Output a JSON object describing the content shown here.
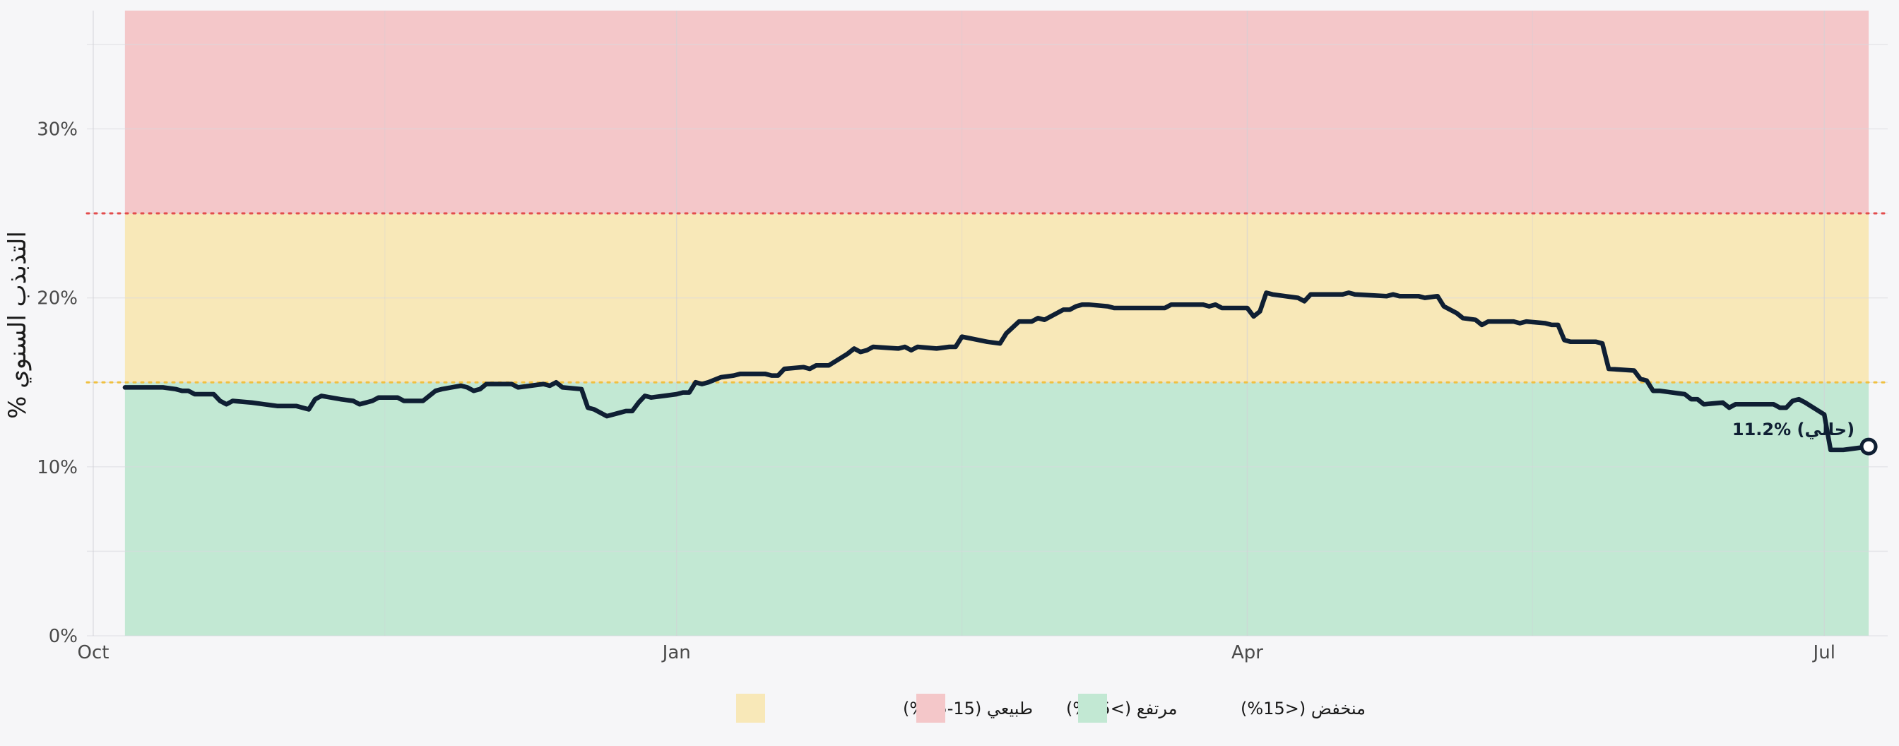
{
  "chart_data": {
    "type": "line",
    "title": "",
    "xlabel": "",
    "ylabel": "التذبذب السنوي %",
    "ylim": [
      0,
      37
    ],
    "yticks": [
      0,
      10,
      20,
      30
    ],
    "ytick_format": "{v}%",
    "x_axis": {
      "start_month": "2025-09-01",
      "range_days": [
        30,
        314
      ],
      "ticks": [
        {
          "day": 31,
          "label": "Oct"
        },
        {
          "day": 123,
          "label": "Jan"
        },
        {
          "day": 213,
          "label": "Apr"
        },
        {
          "day": 304,
          "label": "Jul"
        }
      ],
      "minor_gridlines_days": [
        77,
        168,
        258
      ]
    },
    "zones": [
      {
        "name": "منخفض (<15%)",
        "from": 0,
        "to": 15,
        "color": "#c2e8d3"
      },
      {
        "name": "طبيعي (15-25%)",
        "from": 15,
        "to": 25,
        "color": "#f8e8b8"
      },
      {
        "name": "مرتفع (>25%)",
        "from": 25,
        "to": 37,
        "color": "#f4c7c9"
      }
    ],
    "zone_x_range_days": [
      36,
      311
    ],
    "threshold_lines": [
      {
        "y": 15,
        "color": "#f0c040"
      },
      {
        "y": 25,
        "color": "#e34c4c"
      }
    ],
    "legend": {
      "placement": "bottom-center",
      "entries": [
        {
          "label": "طبيعي (15-25%)",
          "color": "#f8e8b8"
        },
        {
          "label": "مرتفع (>25%)",
          "color": "#f4c7c9"
        },
        {
          "label": "منخفض (<15%)",
          "color": "#c2e8d3"
        }
      ]
    },
    "series": [
      {
        "color": "#0f1f33",
        "points": [
          [
            36,
            14.7
          ],
          [
            42,
            14.7
          ],
          [
            44,
            14.6
          ],
          [
            45,
            14.5
          ],
          [
            46,
            14.5
          ],
          [
            47,
            14.3
          ],
          [
            49,
            14.3
          ],
          [
            50,
            14.3
          ],
          [
            51,
            13.9
          ],
          [
            52,
            13.7
          ],
          [
            53,
            13.9
          ],
          [
            56,
            13.8
          ],
          [
            58,
            13.7
          ],
          [
            60,
            13.6
          ],
          [
            63,
            13.6
          ],
          [
            65,
            13.4
          ],
          [
            66,
            14.0
          ],
          [
            67,
            14.2
          ],
          [
            70,
            14.0
          ],
          [
            72,
            13.9
          ],
          [
            73,
            13.7
          ],
          [
            75,
            13.9
          ],
          [
            76,
            14.1
          ],
          [
            78,
            14.1
          ],
          [
            79,
            14.1
          ],
          [
            80,
            13.9
          ],
          [
            83,
            13.9
          ],
          [
            85,
            14.5
          ],
          [
            86,
            14.6
          ],
          [
            89,
            14.8
          ],
          [
            90,
            14.7
          ],
          [
            91,
            14.5
          ],
          [
            92,
            14.6
          ],
          [
            93,
            14.9
          ],
          [
            97,
            14.9
          ],
          [
            98,
            14.7
          ],
          [
            100,
            14.8
          ],
          [
            102,
            14.9
          ],
          [
            103,
            14.8
          ],
          [
            104,
            15.0
          ],
          [
            105,
            14.7
          ],
          [
            108,
            14.6
          ],
          [
            109,
            13.5
          ],
          [
            110,
            13.4
          ],
          [
            112,
            13.0
          ],
          [
            114,
            13.2
          ],
          [
            115,
            13.3
          ],
          [
            116,
            13.3
          ],
          [
            117,
            13.8
          ],
          [
            118,
            14.2
          ],
          [
            119,
            14.1
          ],
          [
            121,
            14.2
          ],
          [
            123,
            14.3
          ],
          [
            124,
            14.4
          ],
          [
            125,
            14.4
          ],
          [
            126,
            15.0
          ],
          [
            127,
            14.9
          ],
          [
            128,
            15.0
          ],
          [
            130,
            15.3
          ],
          [
            132,
            15.4
          ],
          [
            133,
            15.5
          ],
          [
            137,
            15.5
          ],
          [
            138,
            15.4
          ],
          [
            139,
            15.4
          ],
          [
            140,
            15.8
          ],
          [
            143,
            15.9
          ],
          [
            144,
            15.8
          ],
          [
            145,
            16.0
          ],
          [
            147,
            16.0
          ],
          [
            150,
            16.7
          ],
          [
            151,
            17.0
          ],
          [
            152,
            16.8
          ],
          [
            153,
            16.9
          ],
          [
            154,
            17.1
          ],
          [
            158,
            17.0
          ],
          [
            159,
            17.1
          ],
          [
            160,
            16.9
          ],
          [
            161,
            17.1
          ],
          [
            164,
            17.0
          ],
          [
            166,
            17.1
          ],
          [
            167,
            17.1
          ],
          [
            168,
            17.7
          ],
          [
            172,
            17.4
          ],
          [
            174,
            17.3
          ],
          [
            175,
            17.9
          ],
          [
            177,
            18.6
          ],
          [
            179,
            18.6
          ],
          [
            180,
            18.8
          ],
          [
            181,
            18.7
          ],
          [
            184,
            19.3
          ],
          [
            185,
            19.3
          ],
          [
            186,
            19.5
          ],
          [
            187,
            19.6
          ],
          [
            188,
            19.6
          ],
          [
            191,
            19.5
          ],
          [
            192,
            19.4
          ],
          [
            200,
            19.4
          ],
          [
            201,
            19.6
          ],
          [
            206,
            19.6
          ],
          [
            207,
            19.5
          ],
          [
            208,
            19.6
          ],
          [
            209,
            19.4
          ],
          [
            213,
            19.4
          ],
          [
            214,
            18.9
          ],
          [
            215,
            19.2
          ],
          [
            216,
            20.3
          ],
          [
            217,
            20.2
          ],
          [
            221,
            20.0
          ],
          [
            222,
            19.8
          ],
          [
            223,
            20.2
          ],
          [
            228,
            20.2
          ],
          [
            229,
            20.3
          ],
          [
            230,
            20.2
          ],
          [
            235,
            20.1
          ],
          [
            236,
            20.2
          ],
          [
            237,
            20.1
          ],
          [
            240,
            20.1
          ],
          [
            241,
            20.0
          ],
          [
            243,
            20.1
          ],
          [
            244,
            19.5
          ],
          [
            245,
            19.3
          ],
          [
            246,
            19.1
          ],
          [
            247,
            18.8
          ],
          [
            249,
            18.7
          ],
          [
            250,
            18.4
          ],
          [
            251,
            18.6
          ],
          [
            255,
            18.6
          ],
          [
            256,
            18.5
          ],
          [
            257,
            18.6
          ],
          [
            260,
            18.5
          ],
          [
            261,
            18.4
          ],
          [
            262,
            18.4
          ],
          [
            263,
            17.5
          ],
          [
            264,
            17.4
          ],
          [
            268,
            17.4
          ],
          [
            269,
            17.3
          ],
          [
            270,
            15.8
          ],
          [
            274,
            15.7
          ],
          [
            275,
            15.2
          ],
          [
            276,
            15.1
          ],
          [
            277,
            14.5
          ],
          [
            278,
            14.5
          ],
          [
            282,
            14.3
          ],
          [
            283,
            14.0
          ],
          [
            284,
            14.0
          ],
          [
            285,
            13.7
          ],
          [
            288,
            13.8
          ],
          [
            289,
            13.5
          ],
          [
            290,
            13.7
          ],
          [
            296,
            13.7
          ],
          [
            297,
            13.5
          ],
          [
            298,
            13.5
          ],
          [
            299,
            13.9
          ],
          [
            300,
            14.0
          ],
          [
            301,
            13.8
          ],
          [
            304,
            13.1
          ],
          [
            305,
            11.0
          ],
          [
            307,
            11.0
          ],
          [
            311,
            11.2
          ]
        ]
      }
    ],
    "current_point": {
      "x": 311,
      "y": 11.2
    },
    "annotation": {
      "text": "11.2% (حالي)",
      "x": 311,
      "y": 11.2
    }
  }
}
